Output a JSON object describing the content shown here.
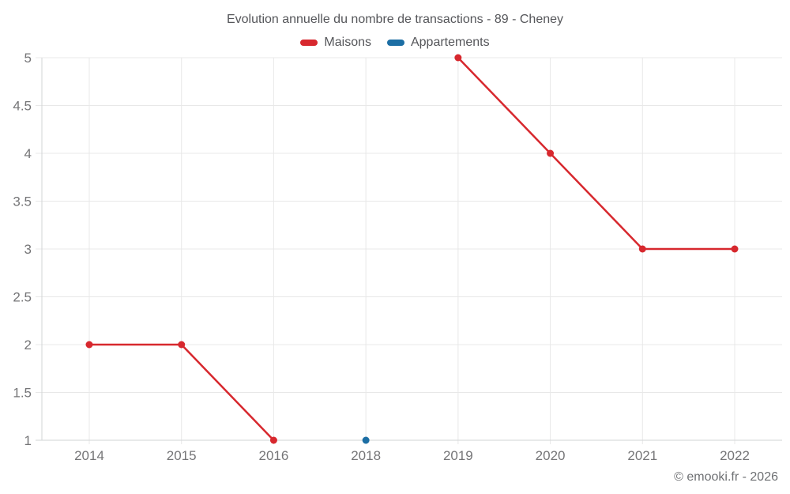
{
  "chart_data": {
    "type": "line",
    "title": "Evolution annuelle du nombre de transactions - 89 - Cheney",
    "categories": [
      "2014",
      "2015",
      "2016",
      "2018",
      "2019",
      "2020",
      "2021",
      "2022"
    ],
    "series": [
      {
        "name": "Maisons",
        "color": "#d7282e",
        "values": [
          2,
          2,
          1,
          null,
          5,
          4,
          3,
          3
        ]
      },
      {
        "name": "Appartements",
        "color": "#1c6ea4",
        "values": [
          null,
          null,
          null,
          1,
          null,
          null,
          null,
          null
        ]
      }
    ],
    "yticks": [
      1,
      1.5,
      2,
      2.5,
      3,
      3.5,
      4,
      4.5,
      5
    ],
    "ytick_labels": [
      "1",
      "1.5",
      "2",
      "2.5",
      "3",
      "3.5",
      "4",
      "4.5",
      "5"
    ],
    "ylim": [
      1,
      5
    ],
    "grid": true,
    "legend_position": "top"
  },
  "footer": {
    "copyright": "© emooki.fr - 2026"
  },
  "colors": {
    "grid": "#e8e8e8",
    "axis": "#d2d4d6",
    "tick_label": "#757577",
    "title": "#55565a"
  }
}
